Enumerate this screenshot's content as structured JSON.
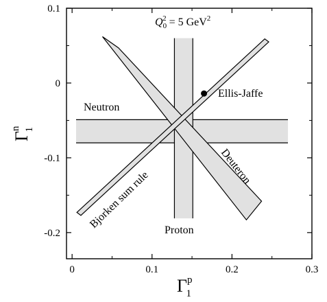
{
  "chart_data": {
    "type": "scatter",
    "title": "Q_0^2 = 5 GeV^2",
    "title_parts": {
      "q": "Q",
      "sub": "0",
      "sup": "2",
      "eq": " = 5 GeV",
      "unit_sup": "2"
    },
    "xlabel": {
      "base": "Γ",
      "sub": "1",
      "sup": "p"
    },
    "ylabel": {
      "base": "Γ",
      "sub": "1",
      "sup": "n"
    },
    "xlim": [
      -0.007,
      0.3
    ],
    "ylim": [
      -0.235,
      0.1
    ],
    "x_ticks": [
      0,
      0.1,
      0.2,
      0.3
    ],
    "x_tick_labels": [
      "0",
      "0.1",
      "0.2",
      "0.3"
    ],
    "y_ticks": [
      -0.2,
      -0.1,
      0,
      0.1
    ],
    "y_tick_labels": [
      "-0.2",
      "-0.1",
      "0",
      "0.1"
    ],
    "grid": false,
    "bands": [
      {
        "label": "Neutron",
        "kind": "horizontal",
        "x_range": [
          0.005,
          0.27
        ],
        "y_range": [
          -0.08,
          -0.049
        ]
      },
      {
        "label": "Proton",
        "kind": "vertical",
        "x_range": [
          0.128,
          0.151
        ],
        "y_range": [
          -0.181,
          0.06
        ]
      },
      {
        "label": "Deuteron",
        "kind": "diagonal",
        "polygon": [
          [
            0.038,
            0.062
          ],
          [
            0.058,
            0.047
          ],
          [
            0.237,
            -0.158
          ],
          [
            0.218,
            -0.183
          ]
        ]
      },
      {
        "label": "Bjorken sum rule",
        "kind": "diagonal",
        "polygon": [
          [
            0.006,
            -0.173
          ],
          [
            0.241,
            0.059
          ],
          [
            0.246,
            0.055
          ],
          [
            0.011,
            -0.177
          ]
        ]
      }
    ],
    "points": [
      {
        "label": "Ellis-Jaffe",
        "x": 0.165,
        "y": -0.014
      }
    ]
  }
}
